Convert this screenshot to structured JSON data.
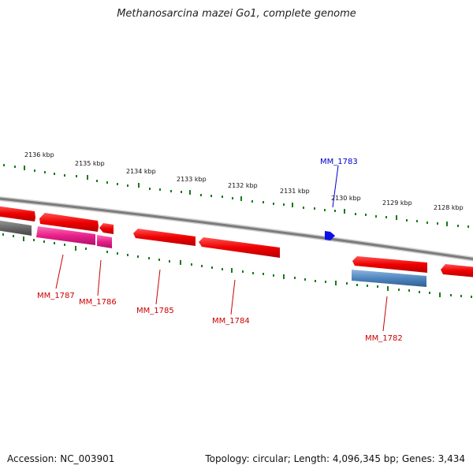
{
  "title": "Methanosarcina mazei Go1, complete genome",
  "footer": {
    "accession": "Accession: NC_003901",
    "summary": "Topology: circular; Length: 4,096,345 bp; Genes: 3,434"
  },
  "colors": {
    "gene": "#ff0000",
    "gene_alt": "#ff2a8a",
    "gene_blue": "#4f86bf",
    "gene_gray": "#6c6c6c",
    "tick": "#1a7a1a",
    "label_red": "#cc0000",
    "label_blue": "#0000cc",
    "backbone": "#8a8a8a"
  },
  "kbp_ticks": [
    "2136 kbp",
    "2135 kbp",
    "2134 kbp",
    "2133 kbp",
    "2132 kbp",
    "2131 kbp",
    "2130 kbp",
    "2129 kbp",
    "2128 kbp"
  ],
  "gene_labels": [
    {
      "id": "MM_1787",
      "color": "red"
    },
    {
      "id": "MM_1786",
      "color": "red"
    },
    {
      "id": "MM_1785",
      "color": "red"
    },
    {
      "id": "MM_1784",
      "color": "red"
    },
    {
      "id": "MM_1783",
      "color": "blue"
    },
    {
      "id": "MM_1782",
      "color": "red"
    }
  ]
}
